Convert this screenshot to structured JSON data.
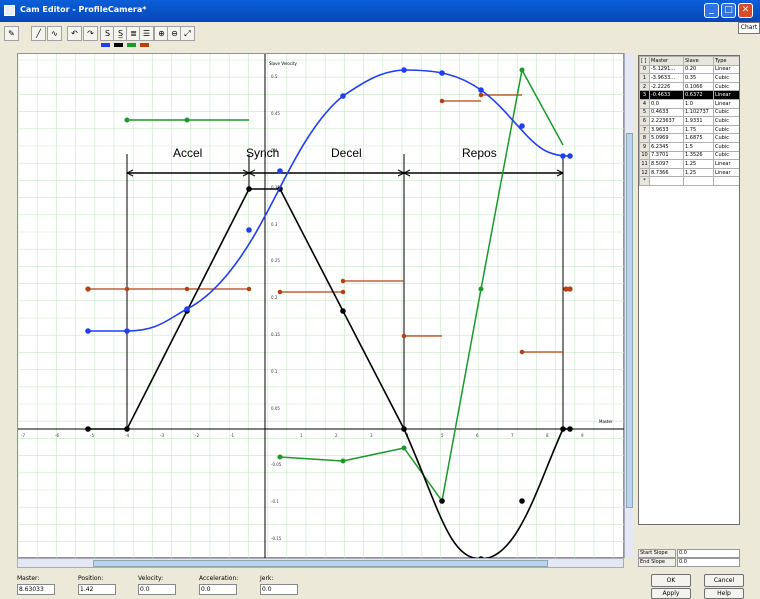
{
  "window": {
    "title": "Cam Editor - ProfileCamera*",
    "minimize_glyph": "_",
    "maximize_glyph": "□",
    "close_glyph": "✕"
  },
  "chart_tab": "Chart",
  "toolbar": {
    "icons": [
      "pencil-icon",
      "line-tool-icon",
      "curve-tool-icon",
      "undo-icon",
      "redo-icon",
      "s-curve-icon",
      "s-curve-alt-icon",
      "grid-icon",
      "grid-alt-icon",
      "zoom-in-icon",
      "zoom-out-icon",
      "zoom-fit-icon"
    ],
    "glyphs": [
      "✎",
      "╱",
      "∿",
      "↶",
      "↷",
      "S",
      "S̲",
      "≣",
      "☰",
      "⊕",
      "⊖",
      "⤢"
    ],
    "series_colors": [
      "#1f3ff0",
      "#000000",
      "#1a9a2a",
      "#b84010"
    ]
  },
  "chart": {
    "y_axis_title": "Slave Velocity",
    "x_axis_title": "Master",
    "x_ticks": [
      "-7",
      "-6",
      "-5",
      "-4",
      "-3",
      "-2",
      "-1",
      "1",
      "2",
      "3",
      "4",
      "5",
      "6",
      "7",
      "8",
      "9"
    ],
    "y_ticks": [
      "0.5",
      "0.45",
      "0.4",
      "0.35",
      "0.3",
      "0.25",
      "0.2",
      "0.15",
      "0.1",
      "0.05",
      "-0.05",
      "-0.1",
      "-0.15"
    ],
    "segment_labels": [
      "Accel",
      "Synch",
      "Decel",
      "Repos"
    ],
    "colors": {
      "position": "#1f3ff0",
      "velocity": "#000000",
      "acceleration": "#1a9a2a",
      "jerk": "#b84010",
      "grid": "#c8e8c8"
    }
  },
  "table": {
    "headers": [
      "[ ]",
      "Master",
      "Slave",
      "Type"
    ],
    "rows": [
      [
        "0",
        "-5.1291...",
        "0.20",
        "Linear"
      ],
      [
        "1",
        "-3.9633...",
        "0.35",
        "Cubic"
      ],
      [
        "2",
        "-2.2226",
        "0.1066",
        "Cubic"
      ],
      [
        "3",
        "-0.4633",
        "0.6372",
        "Linear"
      ],
      [
        "4",
        "0.0",
        "1.0",
        "Linear"
      ],
      [
        "5",
        "0.4633",
        "1.102737",
        "Cubic"
      ],
      [
        "6",
        "2.223637",
        "1.9331",
        "Cubic"
      ],
      [
        "7",
        "3.9633",
        "1.75",
        "Cubic"
      ],
      [
        "8",
        "5.0969",
        "1.6875",
        "Cubic"
      ],
      [
        "9",
        "6.2345",
        "1.5",
        "Cubic"
      ],
      [
        "10",
        "7.3701",
        "1.3526",
        "Cubic"
      ],
      [
        "11",
        "8.5097",
        "1.25",
        "Linear"
      ],
      [
        "12",
        "8.7366",
        "1.25",
        "Linear"
      ],
      [
        "*",
        "",
        "",
        ""
      ]
    ],
    "selected_row": 3
  },
  "slopes": {
    "start_label": "Start Slope",
    "start_value": "0.0",
    "end_label": "End Slope",
    "end_value": "0.0"
  },
  "buttons": {
    "ok": "OK",
    "cancel": "Cancel",
    "apply": "Apply",
    "help": "Help"
  },
  "status": {
    "master_label": "Master:",
    "master_value": "8.63033",
    "position_label": "Position:",
    "position_value": "1.42",
    "velocity_label": "Velocity:",
    "velocity_value": "0.0",
    "acceleration_label": "Acceleration:",
    "acceleration_value": "0.0",
    "jerk_label": "Jerk:",
    "jerk_value": "0.0"
  }
}
